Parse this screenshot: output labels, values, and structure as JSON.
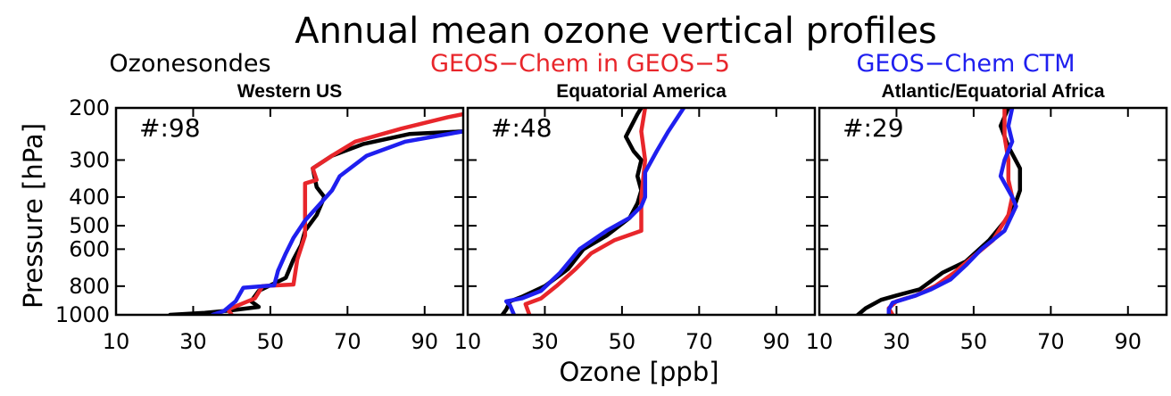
{
  "chart_data": {
    "type": "line",
    "title": "Annual mean ozone vertical profiles",
    "xlabel": "Ozone [ppb]",
    "ylabel": "Pressure [hPa]",
    "xlim": [
      10,
      100
    ],
    "ylim": [
      1000,
      200
    ],
    "y_scale": "log",
    "xticks": [
      "10",
      "30",
      "50",
      "70",
      "90"
    ],
    "yticks": [
      "200",
      "300",
      "400",
      "500",
      "600",
      "800",
      "1000"
    ],
    "legend": [
      {
        "name": "Ozonesondes",
        "color": "#000000"
      },
      {
        "name": "GEOS−Chem in GEOS−5",
        "color": "#e8262b"
      },
      {
        "name": "GEOS−Chem CTM",
        "color": "#1f1fef"
      }
    ],
    "panels": [
      {
        "region": "Western US",
        "count": "#:98",
        "series": [
          {
            "name": "Ozonesondes",
            "points": [
              [
                24,
                1000
              ],
              [
                33,
                985
              ],
              [
                40,
                965
              ],
              [
                47,
                940
              ],
              [
                45,
                900
              ],
              [
                47,
                830
              ],
              [
                54,
                750
              ],
              [
                56,
                650
              ],
              [
                58,
                580
              ],
              [
                59,
                520
              ],
              [
                62,
                460
              ],
              [
                64,
                400
              ],
              [
                62,
                370
              ],
              [
                61,
                320
              ],
              [
                66,
                290
              ],
              [
                74,
                265
              ],
              [
                86,
                245
              ],
              [
                100,
                240
              ]
            ]
          },
          {
            "name": "GEOS−Chem in GEOS−5",
            "points": [
              [
                40,
                1000
              ],
              [
                39,
                960
              ],
              [
                46,
                880
              ],
              [
                48,
                800
              ],
              [
                56,
                790
              ],
              [
                57,
                650
              ],
              [
                59,
                540
              ],
              [
                59,
                450
              ],
              [
                59,
                360
              ],
              [
                62,
                350
              ],
              [
                61,
                320
              ],
              [
                66,
                290
              ],
              [
                72,
                260
              ],
              [
                84,
                235
              ],
              [
                96,
                215
              ],
              [
                100,
                210
              ]
            ]
          },
          {
            "name": "GEOS−Chem CTM",
            "points": [
              [
                35,
                1000
              ],
              [
                38,
                970
              ],
              [
                41,
                900
              ],
              [
                43,
                810
              ],
              [
                51,
                795
              ],
              [
                52,
                710
              ],
              [
                54,
                620
              ],
              [
                56,
                550
              ],
              [
                59,
                480
              ],
              [
                63,
                420
              ],
              [
                66,
                380
              ],
              [
                68,
                340
              ],
              [
                75,
                290
              ],
              [
                85,
                260
              ],
              [
                100,
                240
              ]
            ]
          }
        ]
      },
      {
        "region": "Equatorial America",
        "count": "#:48",
        "series": [
          {
            "name": "Ozonesondes",
            "points": [
              [
                19,
                1000
              ],
              [
                20,
                960
              ],
              [
                21,
                900
              ],
              [
                24,
                870
              ],
              [
                30,
                800
              ],
              [
                36,
                700
              ],
              [
                40,
                600
              ],
              [
                46,
                540
              ],
              [
                52,
                470
              ],
              [
                54,
                420
              ],
              [
                55,
                380
              ],
              [
                54,
                340
              ],
              [
                55,
                300
              ],
              [
                53,
                280
              ],
              [
                51,
                250
              ],
              [
                54,
                210
              ],
              [
                55,
                200
              ]
            ]
          },
          {
            "name": "GEOS−Chem in GEOS−5",
            "points": [
              [
                26,
                1000
              ],
              [
                25,
                920
              ],
              [
                29,
                880
              ],
              [
                33,
                800
              ],
              [
                38,
                700
              ],
              [
                42,
                620
              ],
              [
                48,
                560
              ],
              [
                55,
                520
              ],
              [
                55,
                460
              ],
              [
                55,
                400
              ],
              [
                56,
                300
              ],
              [
                55,
                240
              ],
              [
                56,
                200
              ]
            ]
          },
          {
            "name": "GEOS−Chem CTM",
            "points": [
              [
                22,
                1000
              ],
              [
                21,
                930
              ],
              [
                20,
                900
              ],
              [
                24,
                880
              ],
              [
                29,
                830
              ],
              [
                34,
                720
              ],
              [
                39,
                600
              ],
              [
                46,
                520
              ],
              [
                52,
                470
              ],
              [
                55,
                430
              ],
              [
                56,
                400
              ],
              [
                56,
                330
              ],
              [
                59,
                280
              ],
              [
                62,
                240
              ],
              [
                66,
                200
              ]
            ]
          }
        ]
      },
      {
        "region": "Atlantic/Equatorial Africa",
        "count": "#:29",
        "series": [
          {
            "name": "Ozonesondes",
            "points": [
              [
                20,
                1000
              ],
              [
                22,
                950
              ],
              [
                26,
                890
              ],
              [
                30,
                860
              ],
              [
                36,
                820
              ],
              [
                42,
                720
              ],
              [
                48,
                660
              ],
              [
                54,
                560
              ],
              [
                60,
                450
              ],
              [
                62,
                380
              ],
              [
                62,
                320
              ],
              [
                59,
                270
              ],
              [
                57,
                230
              ],
              [
                59,
                200
              ]
            ]
          },
          {
            "name": "GEOS−Chem in GEOS−5",
            "points": [
              [
                29,
                1000
              ],
              [
                28,
                950
              ],
              [
                30,
                900
              ],
              [
                35,
                860
              ],
              [
                40,
                800
              ],
              [
                45,
                720
              ],
              [
                49,
                650
              ],
              [
                55,
                560
              ],
              [
                59,
                460
              ],
              [
                60,
                400
              ],
              [
                59,
                350
              ],
              [
                59,
                300
              ],
              [
                58,
                250
              ],
              [
                58,
                200
              ]
            ]
          },
          {
            "name": "GEOS−Chem CTM",
            "points": [
              [
                28,
                1000
              ],
              [
                28,
                960
              ],
              [
                29,
                910
              ],
              [
                35,
                860
              ],
              [
                39,
                820
              ],
              [
                44,
                760
              ],
              [
                48,
                680
              ],
              [
                52,
                600
              ],
              [
                58,
                520
              ],
              [
                61,
                430
              ],
              [
                60,
                400
              ],
              [
                57,
                340
              ],
              [
                58,
                300
              ],
              [
                60,
                260
              ],
              [
                59,
                230
              ],
              [
                60,
                200
              ]
            ]
          }
        ]
      }
    ]
  }
}
